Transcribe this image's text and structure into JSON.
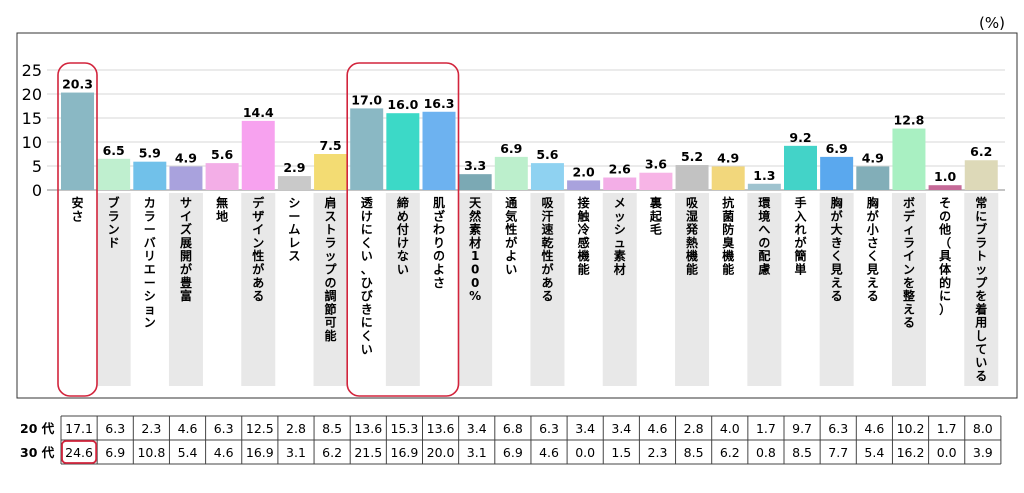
{
  "chart_data": {
    "type": "bar",
    "unit_label": "(%)",
    "categories": [
      "安さ",
      "ブランド",
      "カラーバリエーション",
      "サイズ展開が豊富",
      "無地",
      "デザイン性がある",
      "シームレス",
      "肩ストラップの調節可能",
      "透けにくい、ひびきにくい",
      "締め付けない",
      "肌ざわりのよさ",
      "天然素材100%",
      "通気性がよい",
      "吸汗速乾性がある",
      "接触冷感機能",
      "メッシュ素材",
      "裏起毛",
      "吸湿発熱機能",
      "抗菌防臭機能",
      "環境への配慮",
      "手入れが簡単",
      "胸が大きく見える",
      "胸が小さく見える",
      "ボディラインを整える",
      "その他（具体的に）",
      "常にブラトップを着用している"
    ],
    "values": [
      20.3,
      6.5,
      5.9,
      4.9,
      5.6,
      14.4,
      2.9,
      7.5,
      17.0,
      16.0,
      16.3,
      3.3,
      6.9,
      5.6,
      2.0,
      2.6,
      3.6,
      5.2,
      4.9,
      1.3,
      9.2,
      6.9,
      4.9,
      12.8,
      1.0,
      6.2
    ],
    "value_labels": [
      "20.3",
      "6.5",
      "5.9",
      "4.9",
      "5.6",
      "14.4",
      "2.9",
      "7.5",
      "17.0",
      "16.0",
      "16.3",
      "3.3",
      "6.9",
      "5.6",
      "2.0",
      "2.6",
      "3.6",
      "5.2",
      "4.9",
      "1.3",
      "9.2",
      "6.9",
      "4.9",
      "12.8",
      "1.0",
      "6.2"
    ],
    "colors": [
      "#8ab8c4",
      "#bfefcf",
      "#71c1ea",
      "#a9a2dd",
      "#f3aee7",
      "#f7a2ef",
      "#c9c9c9",
      "#f3dc73",
      "#8ab8c4",
      "#3cd9c7",
      "#6db2f0",
      "#7ba9b4",
      "#bcefcc",
      "#8fd2f1",
      "#a9a2dd",
      "#f3aee7",
      "#f7b4e6",
      "#c2c2c2",
      "#f2d77c",
      "#9fc3cf",
      "#43d3c8",
      "#5aa8ee",
      "#82aeb8",
      "#a9f0c2",
      "#c66a98",
      "#ddd9b8"
    ],
    "ylim": [
      0,
      25
    ],
    "yticks": [
      "25",
      "20",
      "15",
      "10",
      "5",
      "0"
    ],
    "highlight_groups": [
      [
        0,
        0
      ],
      [
        8,
        10
      ]
    ],
    "grid": true,
    "table": {
      "rows": [
        {
          "label": "20 代",
          "values": [
            "17.1",
            "6.3",
            "2.3",
            "4.6",
            "6.3",
            "12.5",
            "2.8",
            "8.5",
            "13.6",
            "15.3",
            "13.6",
            "3.4",
            "6.8",
            "6.3",
            "3.4",
            "3.4",
            "4.6",
            "2.8",
            "4.0",
            "1.7",
            "9.7",
            "6.3",
            "4.6",
            "10.2",
            "1.7",
            "8.0"
          ]
        },
        {
          "label": "30 代",
          "values": [
            "24.6",
            "6.9",
            "10.8",
            "5.4",
            "4.6",
            "16.9",
            "3.1",
            "6.2",
            "21.5",
            "16.9",
            "20.0",
            "3.1",
            "6.9",
            "4.6",
            "0.0",
            "1.5",
            "2.3",
            "8.5",
            "6.2",
            "0.8",
            "8.5",
            "7.7",
            "5.4",
            "16.2",
            "0.0",
            "3.9"
          ]
        }
      ],
      "highlight_cell": {
        "row": 1,
        "col": 0
      }
    }
  }
}
